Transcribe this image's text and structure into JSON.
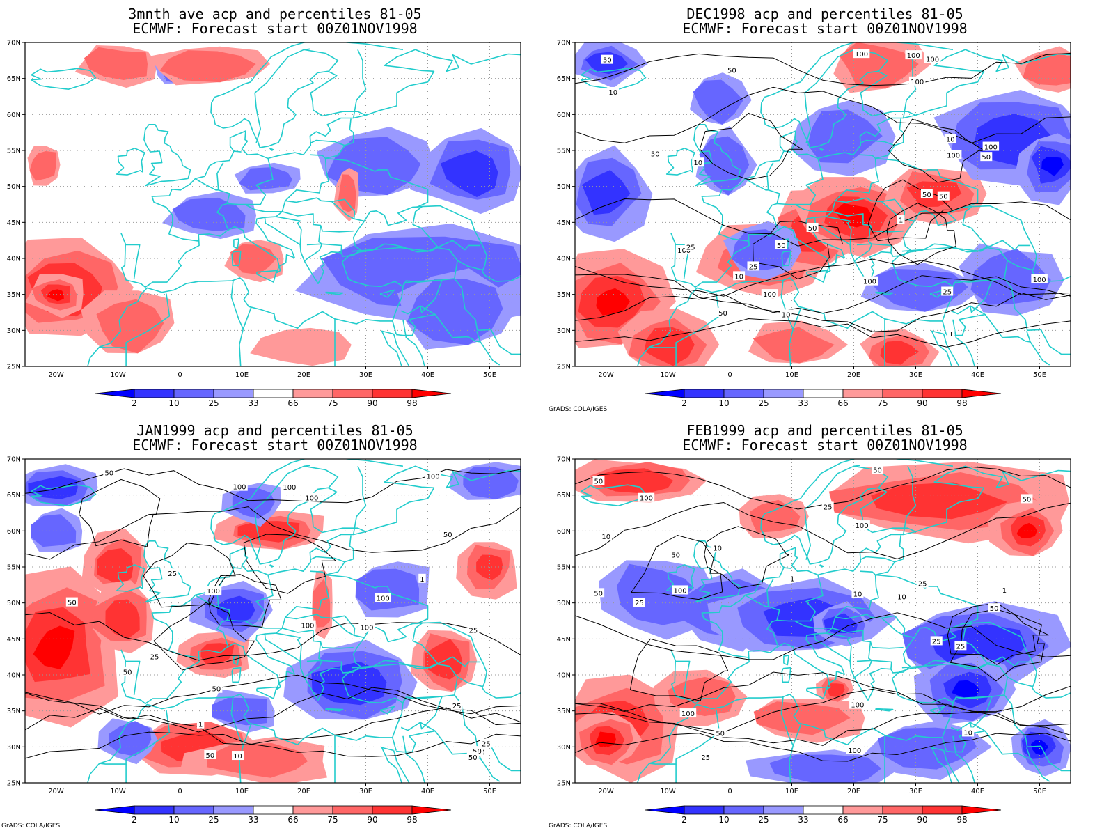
{
  "panels": [
    {
      "title_line1": "3mnth_ave acp and percentiles 81-05",
      "title_line2": "ECMWF: Forecast start 00Z01NOV1998",
      "credit": "",
      "contour_labels": []
    },
    {
      "title_line1": "DEC1998 acp and percentiles 81-05",
      "title_line2": "ECMWF: Forecast start 00Z01NOV1998",
      "credit": "GrADS: COLA/IGES",
      "contour_labels": [
        "100",
        "100",
        "100",
        "100",
        "50",
        "100",
        "50",
        "50",
        "100",
        "50",
        "100",
        "50",
        "100",
        "100",
        "50",
        "25",
        "10",
        "50",
        "100",
        "50",
        "25",
        "10",
        "10",
        "1",
        "1",
        "10",
        "25",
        "50",
        "10"
      ]
    },
    {
      "title_line1": "JAN1999 acp and percentiles 81-05",
      "title_line2": "ECMWF: Forecast start 00Z01NOV1998",
      "credit": "GrADS: COLA/IGES",
      "contour_labels": [
        "100",
        "100",
        "100",
        "50",
        "100",
        "50",
        "100",
        "50",
        "100",
        "100",
        "50",
        "50",
        "25",
        "100",
        "50",
        "50",
        "25",
        "10",
        "25",
        "50",
        "25",
        "1",
        "1",
        "50",
        "25"
      ]
    },
    {
      "title_line1": "FEB1999 acp and percentiles 81-05",
      "title_line2": "ECMWF: Forecast start 00Z01NOV1998",
      "credit": "GrADS: COLA/IGES",
      "contour_labels": [
        "100",
        "100",
        "100",
        "100",
        "50",
        "25",
        "25",
        "100",
        "50",
        "50",
        "100",
        "50",
        "10",
        "50",
        "25",
        "50",
        "25",
        "10",
        "25",
        "50",
        "10",
        "1",
        "1",
        "10",
        "10",
        "25"
      ]
    }
  ],
  "lat_labels": [
    "70N",
    "65N",
    "60N",
    "55N",
    "50N",
    "45N",
    "40N",
    "35N",
    "30N",
    "25N"
  ],
  "lon_labels": [
    "20W",
    "10W",
    "0",
    "10E",
    "20E",
    "30E",
    "40E",
    "50E"
  ],
  "colorbar": {
    "labels": [
      "2",
      "10",
      "25",
      "33",
      "66",
      "75",
      "90",
      "98"
    ],
    "colors": [
      "#0000ff",
      "#3333ff",
      "#6666ff",
      "#9999ff",
      "#ffffff",
      "#ff9999",
      "#ff6666",
      "#ff3333",
      "#ff0000"
    ]
  },
  "colors": {
    "coastline": "#22cccc",
    "contour": "#000000",
    "grid": "#999999"
  }
}
